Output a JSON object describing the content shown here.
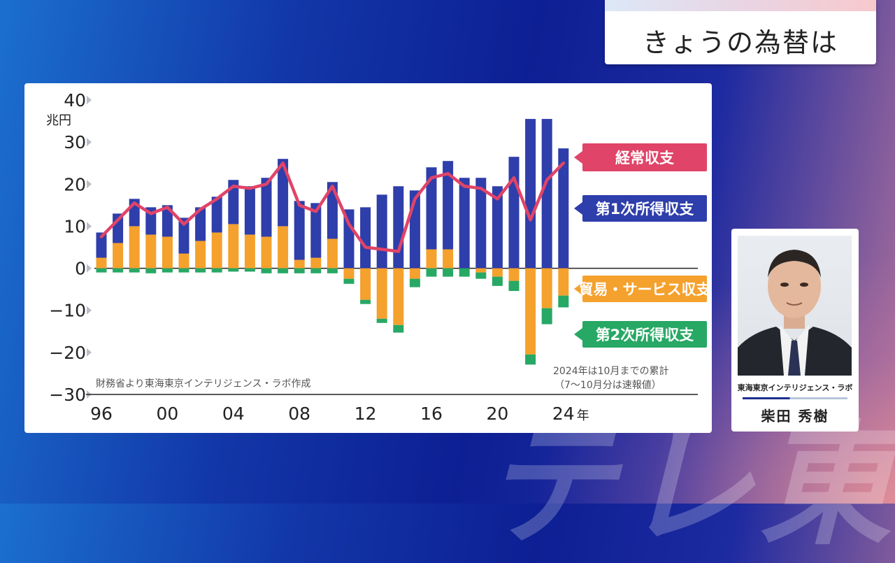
{
  "header": {
    "title": "きょうの為替は"
  },
  "chart_data": {
    "type": "bar",
    "unit_label": "兆円",
    "ylim": [
      -30,
      40
    ],
    "yticks": [
      "40",
      "30",
      "20",
      "10",
      "0",
      "−10",
      "−20",
      "−30"
    ],
    "ytick_values": [
      40,
      30,
      20,
      10,
      0,
      -10,
      -20,
      -30
    ],
    "xtick_labels": [
      "96",
      "00",
      "04",
      "08",
      "12",
      "16",
      "20",
      "24"
    ],
    "xtick_years": [
      1996,
      2000,
      2004,
      2008,
      2012,
      2016,
      2020,
      2024
    ],
    "x_suffix": "年",
    "years": [
      1996,
      1997,
      1998,
      1999,
      2000,
      2001,
      2002,
      2003,
      2004,
      2005,
      2006,
      2007,
      2008,
      2009,
      2010,
      2011,
      2012,
      2013,
      2014,
      2015,
      2016,
      2017,
      2018,
      2019,
      2020,
      2021,
      2022,
      2023,
      2024
    ],
    "series": [
      {
        "name": "経常収支",
        "chart": "line",
        "color": "#e04468",
        "values": [
          7.5,
          11.5,
          15.5,
          13,
          14.5,
          10.5,
          14,
          16.5,
          19.5,
          19,
          20,
          25,
          15,
          13.5,
          19.5,
          10.5,
          5,
          4.5,
          4,
          16.5,
          21.5,
          22.5,
          19.5,
          19,
          16.5,
          21.5,
          11.5,
          21,
          25
        ]
      },
      {
        "name": "第1次所得収支",
        "color": "#2e3eaa",
        "values": [
          6,
          7,
          6.5,
          6.5,
          7.5,
          8.5,
          8,
          8.5,
          10.5,
          11.5,
          14,
          16,
          14,
          13,
          13.5,
          14,
          14.5,
          17.5,
          19.5,
          18.5,
          19.5,
          21,
          21.5,
          21.5,
          19.5,
          26.5,
          35.5,
          35.5,
          28.5
        ]
      },
      {
        "name": "貿易・サービス収支",
        "color": "#f5a12d",
        "values": [
          2.5,
          6,
          10,
          8,
          7.5,
          3.5,
          6.5,
          8.5,
          10.5,
          8,
          7.5,
          10,
          2,
          2.5,
          7,
          -2.5,
          -7.5,
          -12,
          -13.5,
          -2.5,
          4.5,
          4.5,
          0,
          -1,
          -2,
          -3,
          -20.5,
          -9.5,
          -6.5
        ]
      },
      {
        "name": "第2次所得収支",
        "color": "#27a865",
        "values": [
          -1,
          -1,
          -1,
          -1.2,
          -1,
          -1,
          -1,
          -1,
          -0.8,
          -0.8,
          -1.2,
          -1.2,
          -1.2,
          -1.2,
          -1.2,
          -1.2,
          -1,
          -1,
          -1.8,
          -2,
          -2,
          -2,
          -2,
          -1.5,
          -2.2,
          -2.4,
          -2.4,
          -3.8,
          -2.8
        ]
      }
    ],
    "source_note": "財務省より東海東京インテリジェンス・ラボ作成",
    "footnote_line1": "2024年は10月までの累計",
    "footnote_line2": "（7～10月分は速報値）"
  },
  "profile": {
    "org": "東海東京インテリジェンス・ラボ",
    "name": "柴田 秀樹"
  },
  "watermark": "テレ東"
}
